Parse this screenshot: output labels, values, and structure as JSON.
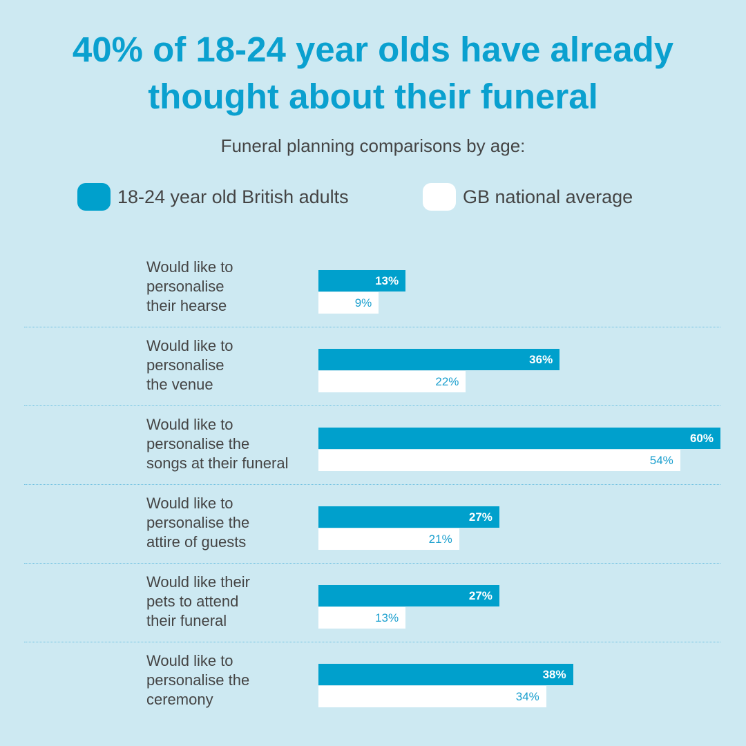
{
  "title_line1": "40% of 18-24 year olds have already",
  "title_line2": "thought about their funeral",
  "subtitle": "Funeral planning comparisons by age:",
  "colors": {
    "background": "#cde9f2",
    "primary": "#00a0cc",
    "secondary": "#ffffff"
  },
  "legend": [
    {
      "label": "18-24 year old British adults",
      "color": "#00a0cc"
    },
    {
      "label": "GB national average",
      "color": "#ffffff"
    }
  ],
  "chart_data": {
    "type": "bar",
    "orientation": "horizontal",
    "title": "40% of 18-24 year olds have already thought about their funeral",
    "subtitle": "Funeral planning comparisons by age:",
    "xlim": [
      0,
      60
    ],
    "grid": false,
    "legend_position": "top",
    "categories": [
      {
        "lines": [
          "Would like to",
          "personalise",
          "their hearse"
        ],
        "icon": "hearse-car-icon"
      },
      {
        "lines": [
          "Would like to",
          "personalise",
          "the venue"
        ],
        "icon": "venue-building-icon"
      },
      {
        "lines": [
          "Would like to",
          "personalise the",
          "songs at their funeral"
        ],
        "icon": "cassette-tape-icon"
      },
      {
        "lines": [
          "Would like to",
          "personalise the",
          "attire of guests"
        ],
        "icon": "bow-tie-icon"
      },
      {
        "lines": [
          "Would like their",
          "pets to attend",
          "their funeral"
        ],
        "icon": "dog-icon"
      },
      {
        "lines": [
          "Would like to",
          "personalise the",
          "ceremony"
        ],
        "icon": "person-icon"
      }
    ],
    "series": [
      {
        "name": "18-24 year old British adults",
        "values": [
          13,
          36,
          60,
          27,
          27,
          38
        ],
        "labels": [
          "13%",
          "36%",
          "60%",
          "27%",
          "27%",
          "38%"
        ]
      },
      {
        "name": "GB national average",
        "values": [
          9,
          22,
          54,
          21,
          13,
          34
        ],
        "labels": [
          "9%",
          "22%",
          "54%",
          "21%",
          "13%",
          "34%"
        ]
      }
    ]
  }
}
